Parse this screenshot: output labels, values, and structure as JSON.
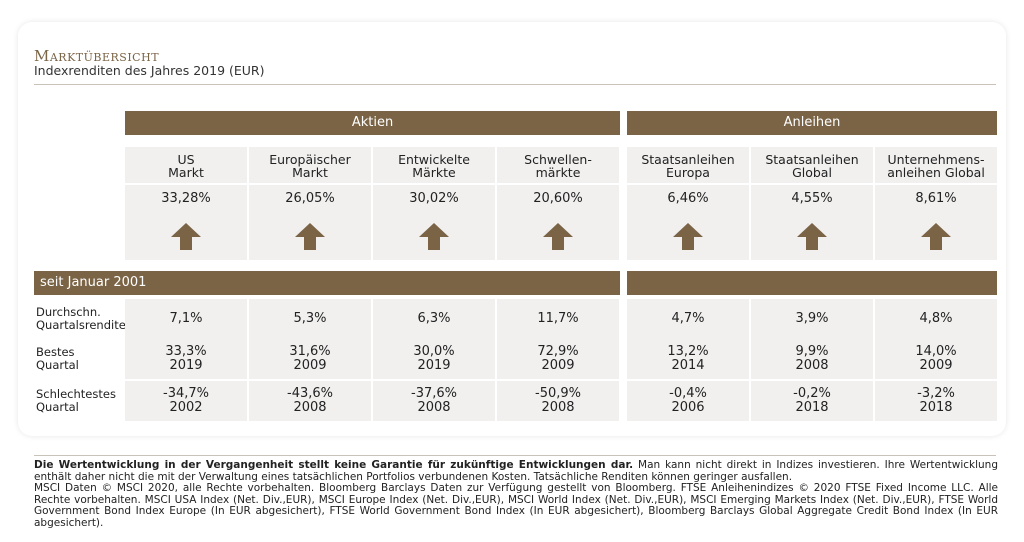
{
  "header": {
    "title": "Marktübersicht",
    "subtitle": "Indexrenditen des Jahres 2019 (EUR)"
  },
  "groups": {
    "aktien": "Aktien",
    "anleihen": "Anleihen"
  },
  "columns": [
    {
      "line1": "US",
      "line2": "Markt",
      "return_2019": "33,28%",
      "trend": "up"
    },
    {
      "line1": "Europäischer",
      "line2": "Markt",
      "return_2019": "26,05%",
      "trend": "up"
    },
    {
      "line1": "Entwickelte",
      "line2": "Märkte",
      "return_2019": "30,02%",
      "trend": "up"
    },
    {
      "line1": "Schwellen-",
      "line2": "märkte",
      "return_2019": "20,60%",
      "trend": "up"
    },
    {
      "line1": "Staatsanleihen",
      "line2": "Europa",
      "return_2019": "6,46%",
      "trend": "up"
    },
    {
      "line1": "Staatsanleihen",
      "line2": "Global",
      "return_2019": "4,55%",
      "trend": "up"
    },
    {
      "line1": "Unternehmens-",
      "line2": "anleihen Global",
      "return_2019": "8,61%",
      "trend": "up"
    }
  ],
  "since": {
    "label": "seit Januar 2001"
  },
  "rows": [
    {
      "label1": "Durchschn.",
      "label2": "Quartalsrendite",
      "values": [
        [
          "7,1%",
          ""
        ],
        [
          "5,3%",
          ""
        ],
        [
          "6,3%",
          ""
        ],
        [
          "11,7%",
          ""
        ],
        [
          "4,7%",
          ""
        ],
        [
          "3,9%",
          ""
        ],
        [
          "4,8%",
          ""
        ]
      ]
    },
    {
      "label1": "Bestes",
      "label2": "Quartal",
      "values": [
        [
          "33,3%",
          "2019"
        ],
        [
          "31,6%",
          "2009"
        ],
        [
          "30,0%",
          "2019"
        ],
        [
          "72,9%",
          "2009"
        ],
        [
          "13,2%",
          "2014"
        ],
        [
          "9,9%",
          "2008"
        ],
        [
          "14,0%",
          "2009"
        ]
      ]
    },
    {
      "label1": "Schlechtestes",
      "label2": "Quartal",
      "values": [
        [
          "-34,7%",
          "2002"
        ],
        [
          "-43,6%",
          "2008"
        ],
        [
          "-37,6%",
          "2008"
        ],
        [
          "-50,9%",
          "2008"
        ],
        [
          "-0,4%",
          "2006"
        ],
        [
          "-0,2%",
          "2018"
        ],
        [
          "-3,2%",
          "2018"
        ]
      ]
    }
  ],
  "footer": {
    "bold": "Die Wertentwicklung in der Vergangenheit stellt keine Garantie für zukünftige Entwicklungen dar.",
    "text": "Man kann nicht direkt in Indizes investieren. Ihre Wertentwicklung enthält daher nicht die mit der Verwaltung eines tatsächlichen Portfolios verbundenen Kosten. Tatsächliche Renditen können geringer ausfallen.",
    "copyright": "MSCI Daten © MSCI 2020, alle Rechte vorbehalten. Bloomberg Barclays Daten zur Verfügung gestellt von Bloomberg. FTSE Anleihenindizes © 2020 FTSE Fixed Income LLC. Alle Rechte vorbehalten. MSCI USA Index (Net. Div.,EUR), MSCI Europe Index (Net. Div.,EUR), MSCI World Index (Net. Div.,EUR), MSCI Emerging Markets Index (Net. Div.,EUR), FTSE World Government Bond Index Europe (In EUR abgesichert), FTSE World Government Bond Index (In EUR abgesichert), Bloomberg Barclays Global Aggregate Credit Bond Index (In EUR abgesichert)."
  },
  "colors": {
    "brand": "#7b6446",
    "cell": "#f1f0ef"
  }
}
